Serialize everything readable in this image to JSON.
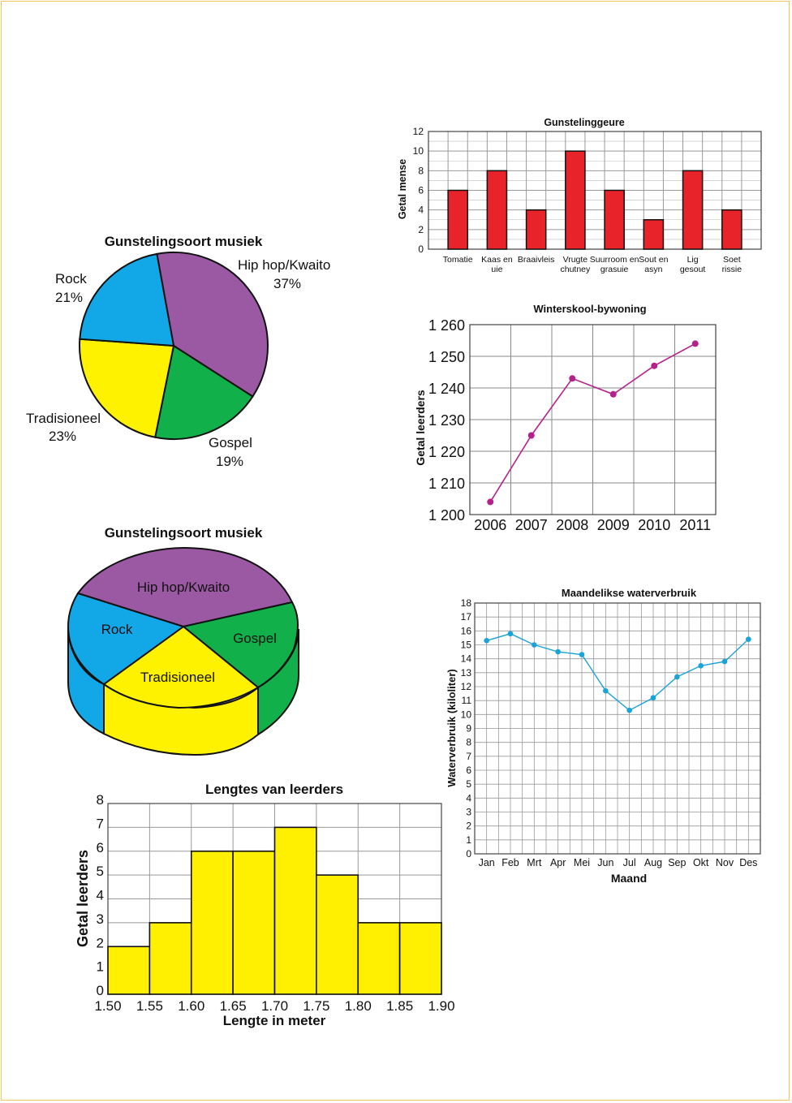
{
  "colors": {
    "bar_red": "#e8232a",
    "line_magenta": "#b5218b",
    "line_cyan": "#1aa3d9",
    "hist_yellow": "#ffef00",
    "pie_purple": "#9b59a3",
    "pie_green": "#12b04a",
    "pie_yellow": "#fff200",
    "pie_blue": "#12a8e8",
    "frame": "#f2c35a"
  },
  "chart_data": [
    {
      "id": "pie",
      "type": "pie",
      "title": "Gunstelingsoort musiek",
      "slices": [
        {
          "name": "Hip hop/Kwaito",
          "pct_label": "37%",
          "value": 37,
          "color": "#9b59a3"
        },
        {
          "name": "Gospel",
          "pct_label": "19%",
          "value": 19,
          "color": "#12b04a"
        },
        {
          "name": "Tradisioneel",
          "pct_label": "23%",
          "value": 23,
          "color": "#fff200"
        },
        {
          "name": "Rock",
          "pct_label": "21%",
          "value": 21,
          "color": "#12a8e8"
        }
      ]
    },
    {
      "id": "pie3d",
      "type": "pie",
      "title": "Gunstelingsoort musiek",
      "slices": [
        {
          "name": "Hip hop/Kwaito",
          "value": 37,
          "color": "#9b59a3"
        },
        {
          "name": "Gospel",
          "value": 19,
          "color": "#12b04a"
        },
        {
          "name": "Tradisioneel",
          "value": 23,
          "color": "#fff200"
        },
        {
          "name": "Rock",
          "value": 21,
          "color": "#12a8e8"
        }
      ]
    },
    {
      "id": "bar",
      "type": "bar",
      "title": "Gunstelinggeure",
      "ylabel": "Getal mense",
      "xlabel": "",
      "ylim": [
        0,
        12
      ],
      "yticks": [
        "0",
        "2",
        "4",
        "6",
        "8",
        "10",
        "12"
      ],
      "categories": [
        [
          "Tomatie"
        ],
        [
          "Kaas en",
          "uie"
        ],
        [
          "Braaivleis"
        ],
        [
          "Vrugte",
          "chutney"
        ],
        [
          "Suurroom en",
          "grasuie"
        ],
        [
          "Sout en",
          "asyn"
        ],
        [
          "Lig",
          "gesout"
        ],
        [
          "Soet",
          "rissie"
        ]
      ],
      "values": [
        6,
        8,
        4,
        10,
        6,
        3,
        8,
        4
      ],
      "grid": true
    },
    {
      "id": "line1",
      "type": "line",
      "title": "Winterskool-bywoning",
      "ylabel": "Getal leerders",
      "xlabel": "",
      "ylim": [
        1200,
        1260
      ],
      "yticks": [
        "1 200",
        "1 210",
        "1 220",
        "1 230",
        "1 240",
        "1 250",
        "1 260"
      ],
      "x": [
        "2006",
        "2007",
        "2008",
        "2009",
        "2010",
        "2011"
      ],
      "values": [
        1204,
        1225,
        1243,
        1238,
        1247,
        1254
      ],
      "grid": true
    },
    {
      "id": "line2",
      "type": "line",
      "title": "Maandelikse waterverbruik",
      "ylabel": "Waterverbruik (kiloliter)",
      "xlabel": "Maand",
      "ylim": [
        0,
        18
      ],
      "yticks": [
        "0",
        "1",
        "2",
        "3",
        "4",
        "5",
        "6",
        "7",
        "8",
        "9",
        "10",
        "11",
        "12",
        "13",
        "14",
        "15",
        "16",
        "17",
        "18"
      ],
      "x": [
        "Jan",
        "Feb",
        "Mrt",
        "Apr",
        "Mei",
        "Jun",
        "Jul",
        "Aug",
        "Sep",
        "Okt",
        "Nov",
        "Des"
      ],
      "values": [
        15.3,
        15.8,
        15.0,
        14.5,
        14.3,
        11.7,
        10.3,
        11.2,
        12.7,
        13.5,
        13.8,
        15.4
      ],
      "grid": true
    },
    {
      "id": "hist",
      "type": "bar",
      "title": "Lengtes van leerders",
      "ylabel": "Getal leerders",
      "xlabel": "Lengte in meter",
      "ylim": [
        0,
        8
      ],
      "yticks": [
        "0",
        "1",
        "2",
        "3",
        "4",
        "5",
        "6",
        "7",
        "8"
      ],
      "xticks": [
        "1.50",
        "1.55",
        "1.60",
        "1.65",
        "1.70",
        "1.75",
        "1.80",
        "1.85",
        "1.90"
      ],
      "values": [
        2,
        3,
        6,
        6,
        7,
        5,
        3,
        3
      ],
      "grid": true
    }
  ]
}
